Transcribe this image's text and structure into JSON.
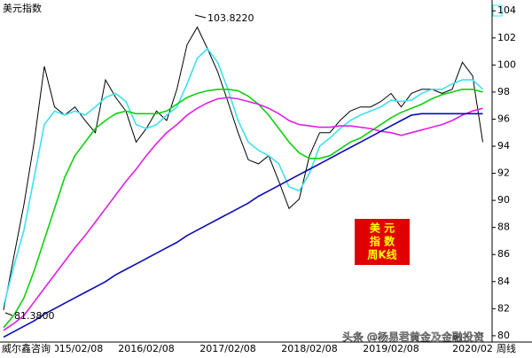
{
  "chart_data": {
    "type": "line",
    "title": "美元指数",
    "categories": [
      null,
      null,
      null,
      null,
      null,
      null,
      null,
      "2015/02/08",
      null,
      null,
      null,
      null,
      null,
      null,
      "2016/02/08",
      null,
      null,
      null,
      null,
      null,
      null,
      null,
      "2017/02/08",
      null,
      null,
      null,
      null,
      null,
      null,
      null,
      "2018/02/08",
      null,
      null,
      null,
      null,
      null,
      null,
      null,
      "2019/02/08",
      null,
      null,
      null,
      null,
      null,
      null,
      null,
      "2020/02",
      null
    ],
    "period_label": "周线",
    "series": [
      {
        "color": "#000000",
        "values": [
          81.9,
          85.8,
          89.7,
          94.3,
          99.9,
          96.9,
          96.3,
          96.9,
          95.9,
          95.0,
          98.9,
          97.6,
          96.6,
          94.3,
          95.3,
          96.6,
          95.9,
          98.2,
          101.5,
          102.8,
          101.2,
          99.5,
          97.3,
          95.0,
          93.0,
          92.7,
          93.3,
          91.4,
          89.4,
          90.1,
          93.3,
          95.0,
          95.0,
          95.9,
          96.6,
          96.9,
          96.9,
          97.3,
          97.9,
          96.9,
          97.9,
          98.2,
          98.2,
          97.9,
          98.2,
          100.2,
          99.2,
          94.3
        ]
      },
      {
        "color": "#3ee0f0",
        "values": [
          82.2,
          85.1,
          87.8,
          91.7,
          95.6,
          96.6,
          96.3,
          96.6,
          96.3,
          96.9,
          97.6,
          97.9,
          97.3,
          95.6,
          95.3,
          95.6,
          96.3,
          96.9,
          98.6,
          100.5,
          101.2,
          100.2,
          98.2,
          95.9,
          94.3,
          93.7,
          93.3,
          92.7,
          91.0,
          90.7,
          92.0,
          94.0,
          94.6,
          95.3,
          95.9,
          96.3,
          96.6,
          96.9,
          97.4,
          97.3,
          97.4,
          97.9,
          98.2,
          98.2,
          98.6,
          98.9,
          98.9,
          98.2
        ]
      },
      {
        "color": "#10d010",
        "values": [
          80.6,
          81.5,
          82.8,
          84.8,
          87.1,
          89.4,
          91.7,
          93.3,
          94.3,
          95.3,
          95.9,
          96.4,
          96.6,
          96.4,
          96.4,
          96.4,
          96.6,
          97.1,
          97.6,
          97.9,
          98.1,
          98.2,
          98.2,
          98.1,
          97.7,
          97.1,
          96.3,
          95.3,
          94.3,
          93.5,
          93.1,
          93.1,
          93.3,
          93.8,
          94.3,
          94.6,
          95.1,
          95.6,
          96.1,
          96.5,
          96.8,
          97.1,
          97.5,
          97.8,
          98.0,
          98.2,
          98.2,
          98.0
        ]
      },
      {
        "color": "#e020e0",
        "values": [
          80.4,
          80.9,
          81.5,
          82.5,
          83.5,
          84.5,
          85.5,
          86.5,
          87.4,
          88.4,
          89.4,
          90.4,
          91.4,
          92.3,
          93.3,
          94.2,
          95.0,
          95.6,
          96.3,
          96.8,
          97.2,
          97.5,
          97.6,
          97.5,
          97.3,
          97.1,
          96.8,
          96.4,
          95.9,
          95.6,
          95.5,
          95.4,
          95.4,
          95.5,
          95.5,
          95.4,
          95.3,
          95.1,
          95.0,
          94.8,
          95.0,
          95.2,
          95.4,
          95.6,
          95.9,
          96.3,
          96.6,
          96.8
        ]
      },
      {
        "color": "#0a0ab8",
        "values": [
          79.9,
          80.3,
          80.7,
          81.1,
          81.6,
          82.0,
          82.4,
          82.8,
          83.2,
          83.6,
          84.0,
          84.5,
          84.9,
          85.3,
          85.7,
          86.1,
          86.5,
          86.9,
          87.4,
          87.8,
          88.2,
          88.6,
          89.0,
          89.4,
          89.8,
          90.3,
          90.7,
          91.1,
          91.5,
          91.9,
          92.3,
          92.7,
          93.1,
          93.5,
          93.9,
          94.3,
          94.7,
          95.1,
          95.5,
          95.9,
          96.3,
          96.4,
          96.4,
          96.4,
          96.4,
          96.4,
          96.4,
          96.4
        ]
      }
    ],
    "ylim": [
      79.6,
      104.8
    ],
    "yticks": [
      80,
      82,
      84,
      86,
      88,
      90,
      92,
      94,
      96,
      98,
      100,
      102,
      104
    ],
    "annotations": [
      "103.8220",
      "81.3800"
    ],
    "badge_lines": [
      "美 元",
      "指 数",
      "周K线"
    ],
    "watermarks": [
      "威尔鑫咨询",
      "头条 @杨易君黄金及金融投资"
    ]
  }
}
